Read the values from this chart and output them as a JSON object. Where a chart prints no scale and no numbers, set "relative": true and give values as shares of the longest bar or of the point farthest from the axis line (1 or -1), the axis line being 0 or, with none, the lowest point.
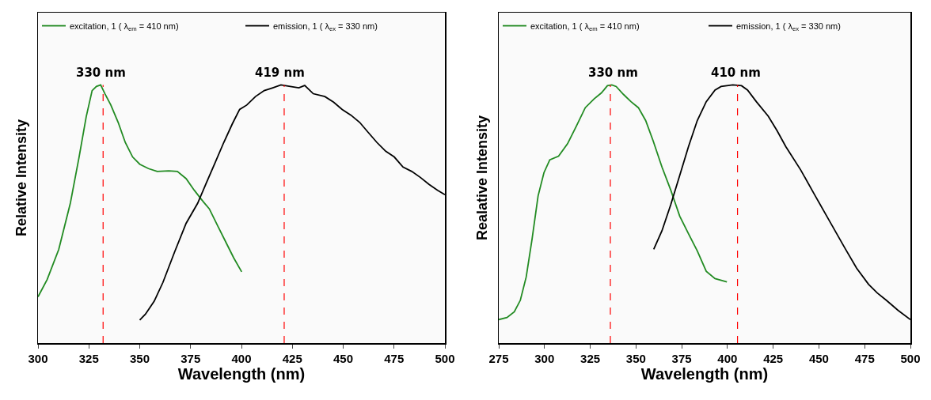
{
  "chart_data": [
    {
      "type": "line",
      "xlabel": "Wavelength (nm)",
      "ylabel": "Relative Intensity",
      "relative": true,
      "xlim": [
        300,
        500
      ],
      "xticks": [
        300,
        325,
        350,
        375,
        400,
        425,
        450,
        475,
        500
      ],
      "legend": "top",
      "grid": false,
      "marker": "none",
      "line_style": "solid",
      "series": [
        {
          "name": "excitation, 1 ( λ$_{em}$ = 410 nm)",
          "color": "#228b22",
          "x": [
            300,
            304.5,
            310.2,
            315.9,
            320.2,
            323.7,
            326.6,
            328.7,
            330.8,
            332.9,
            335.8,
            339.4,
            342.9,
            346.5,
            350,
            354.3,
            358.6,
            364.3,
            368.5,
            372.8,
            376.8,
            381.3,
            384.2,
            388.4,
            392.7,
            396.2,
            400.1
          ],
          "values": [
            0.179,
            0.246,
            0.363,
            0.542,
            0.721,
            0.877,
            0.978,
            0.994,
            1.0,
            0.966,
            0.922,
            0.855,
            0.777,
            0.721,
            0.693,
            0.676,
            0.665,
            0.667,
            0.665,
            0.637,
            0.592,
            0.547,
            0.52,
            0.453,
            0.385,
            0.33,
            0.276
          ]
        },
        {
          "name": "emission, 1 ( λ$_{ex}$ = 330 nm)",
          "color": "#000000",
          "x": [
            350,
            352.8,
            357.1,
            361.4,
            367.1,
            372.8,
            378.5,
            382.7,
            387,
            391.3,
            395.5,
            399.1,
            402.6,
            406.9,
            411.2,
            415.4,
            419.4,
            424,
            428.2,
            431.1,
            435.3,
            441,
            445.3,
            449.5,
            453.8,
            458.1,
            462.3,
            466.6,
            470.9,
            475.1,
            479.4,
            483.7,
            487.9,
            492.2,
            496.4,
            500
          ],
          "values": [
            0.089,
            0.112,
            0.162,
            0.235,
            0.352,
            0.464,
            0.542,
            0.62,
            0.698,
            0.777,
            0.849,
            0.905,
            0.922,
            0.955,
            0.978,
            0.989,
            1.0,
            0.994,
            0.989,
            0.998,
            0.966,
            0.955,
            0.933,
            0.905,
            0.883,
            0.855,
            0.816,
            0.777,
            0.743,
            0.721,
            0.682,
            0.665,
            0.642,
            0.615,
            0.592,
            0.575
          ]
        }
      ],
      "ref_lines": [
        {
          "axis": "x",
          "value": 332,
          "color": "#ff0000",
          "line_style": "dashed"
        },
        {
          "axis": "x",
          "value": 421,
          "color": "#ff0000",
          "line_style": "dashed"
        }
      ],
      "annotations": [
        {
          "text": "330 nm",
          "x": 331,
          "y": 1.0
        },
        {
          "text": "419 nm",
          "x": 419,
          "y": 1.0
        }
      ]
    },
    {
      "type": "line",
      "xlabel": "Wavelength (nm)",
      "ylabel": "Realative Intensity",
      "relative": true,
      "xlim": [
        275,
        500
      ],
      "xticks": [
        275,
        300,
        325,
        350,
        375,
        400,
        425,
        450,
        475,
        500
      ],
      "legend": "top",
      "grid": false,
      "marker": "none",
      "line_style": "solid",
      "series": [
        {
          "name": "excitation, 1 ( λ$_{em}$ = 410 nm)",
          "color": "#228b22",
          "x": [
            275,
            279.5,
            283.5,
            286.8,
            290,
            293.2,
            296.5,
            299.7,
            302.9,
            307.7,
            312.6,
            317.4,
            322.3,
            327.1,
            331.1,
            334.4,
            336.8,
            339.2,
            343.2,
            347.3,
            351.3,
            355.3,
            359.4,
            364.2,
            369,
            373.9,
            378.7,
            383.5,
            388.4,
            393.2,
            399.7
          ],
          "values": [
            0.091,
            0.099,
            0.121,
            0.166,
            0.256,
            0.402,
            0.57,
            0.66,
            0.71,
            0.724,
            0.772,
            0.84,
            0.912,
            0.946,
            0.969,
            0.997,
            1.0,
            0.994,
            0.963,
            0.935,
            0.912,
            0.862,
            0.783,
            0.682,
            0.593,
            0.492,
            0.424,
            0.357,
            0.278,
            0.25,
            0.237
          ]
        },
        {
          "name": "emission, 1 ( λ$_{ex}$ = 330 nm)",
          "color": "#000000",
          "x": [
            359.7,
            364.2,
            369,
            373.9,
            378.7,
            383.5,
            388.4,
            393.2,
            396.5,
            402.9,
            407.7,
            411,
            415.8,
            422.3,
            427.1,
            431.9,
            440,
            448,
            456.1,
            464.2,
            470.6,
            477.1,
            481.9,
            486.8,
            493.2,
            500
          ],
          "values": [
            0.363,
            0.435,
            0.536,
            0.649,
            0.761,
            0.862,
            0.935,
            0.98,
            0.994,
            1.0,
            0.997,
            0.98,
            0.935,
            0.879,
            0.823,
            0.761,
            0.671,
            0.57,
            0.469,
            0.368,
            0.29,
            0.228,
            0.194,
            0.166,
            0.127,
            0.091
          ]
        }
      ],
      "ref_lines": [
        {
          "axis": "x",
          "value": 336,
          "color": "#ff0000",
          "line_style": "dashed"
        },
        {
          "axis": "x",
          "value": 405.5,
          "color": "#ff0000",
          "line_style": "dashed"
        }
      ],
      "annotations": [
        {
          "text": "330 nm",
          "x": 337.5,
          "y": 1.0
        },
        {
          "text": "410 nm",
          "x": 404.5,
          "y": 1.0
        }
      ]
    }
  ]
}
